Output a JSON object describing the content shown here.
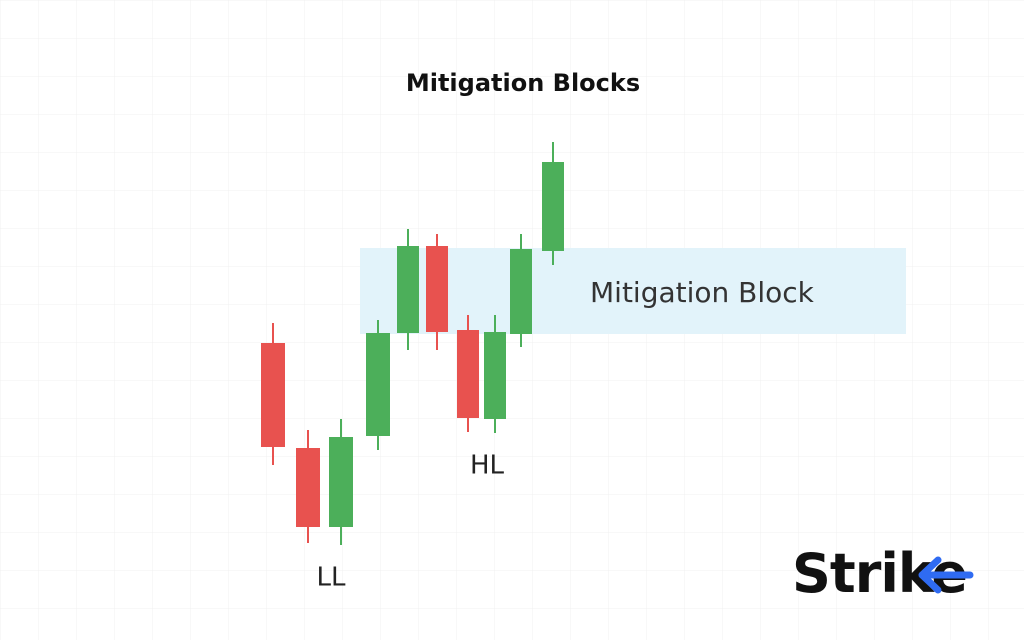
{
  "title": "Mitigation Blocks",
  "block_label": "Mitigation Block",
  "labels": {
    "higher_low": "HL",
    "lower_low": "LL"
  },
  "logo": "Strike"
}
